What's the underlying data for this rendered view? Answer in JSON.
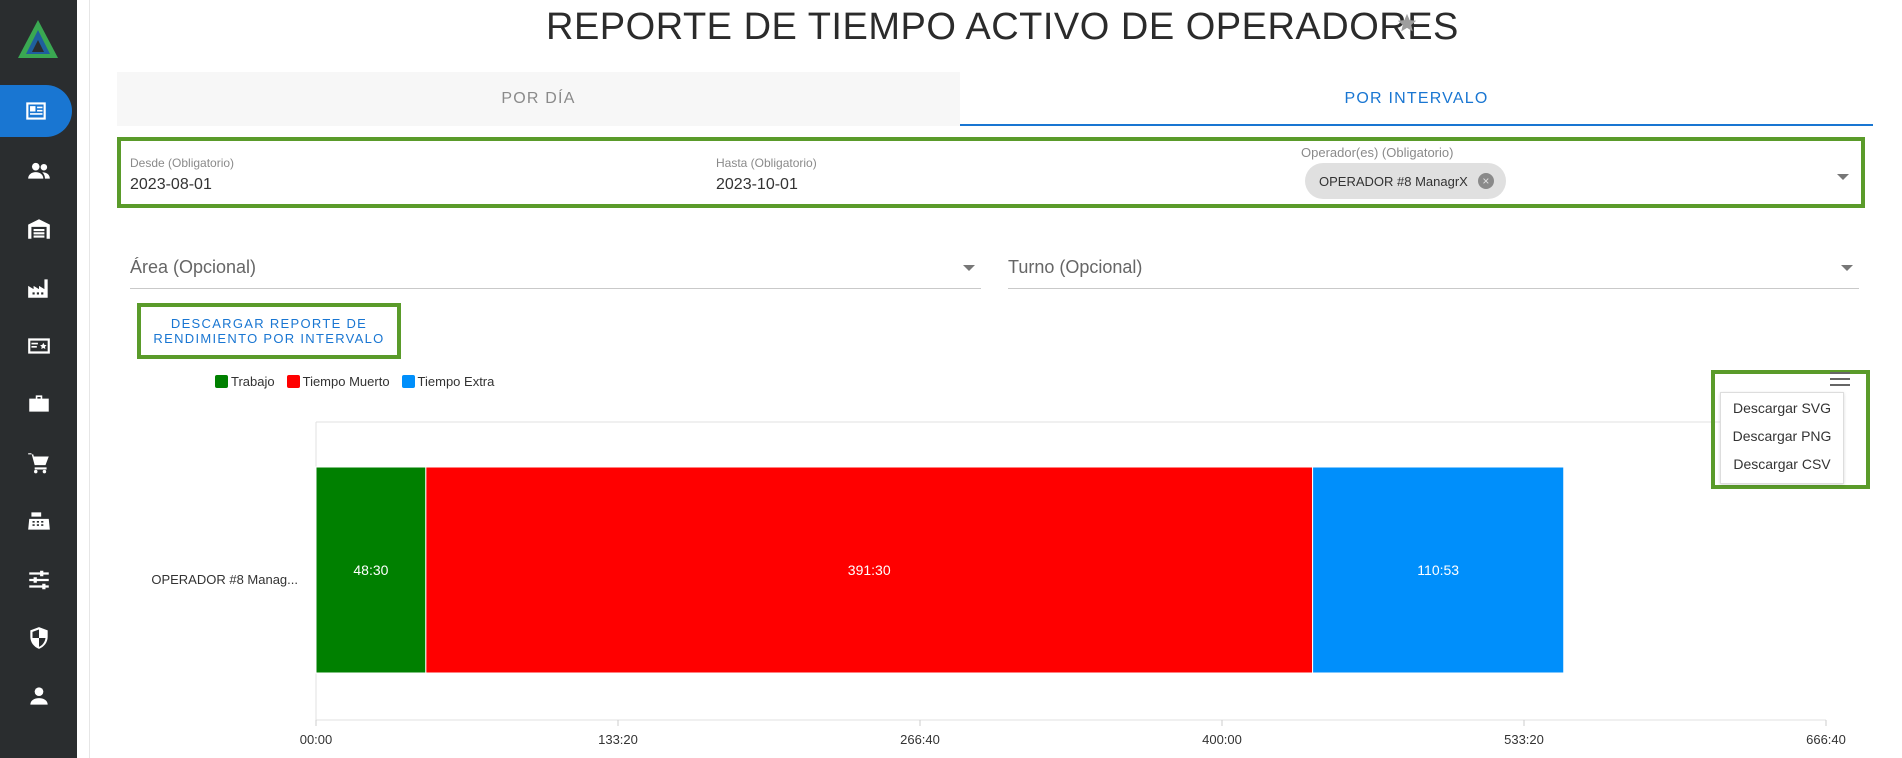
{
  "page": {
    "title": "REPORTE DE TIEMPO ACTIVO DE OPERADORES"
  },
  "sidebar": {
    "items": [
      {
        "icon": "newspaper-icon",
        "active": true
      },
      {
        "icon": "group-icon",
        "active": false
      },
      {
        "icon": "warehouse-icon",
        "active": false
      },
      {
        "icon": "factory-icon",
        "active": false
      },
      {
        "icon": "badge-card-icon",
        "active": false
      },
      {
        "icon": "toolbox-icon",
        "active": false
      },
      {
        "icon": "cart-icon",
        "active": false
      },
      {
        "icon": "cash-register-icon",
        "active": false
      },
      {
        "icon": "sliders-icon",
        "active": false
      },
      {
        "icon": "shield-icon",
        "active": false
      },
      {
        "icon": "person-icon",
        "active": false
      }
    ]
  },
  "tabs": [
    {
      "label": "POR DÍA",
      "active": false
    },
    {
      "label": "POR INTERVALO",
      "active": true
    }
  ],
  "filters": {
    "desde_label": "Desde (Obligatorio)",
    "desde_value": "2023-08-01",
    "hasta_label": "Hasta (Obligatorio)",
    "hasta_value": "2023-10-01",
    "operador_label": "Operador(es) (Obligatorio)",
    "operador_chip": "OPERADOR #8 ManagrX",
    "area_placeholder": "Área (Opcional)",
    "turno_placeholder": "Turno (Opcional)"
  },
  "download_button": {
    "line1": "DESCARGAR REPORTE DE",
    "line2": "RENDIMIENTO POR INTERVALO"
  },
  "export_menu": {
    "items": [
      "Descargar SVG",
      "Descargar PNG",
      "Descargar CSV"
    ]
  },
  "colors": {
    "accent": "#1976d2",
    "sidebar": "#2a2d2f",
    "highlight": "#5a9b2a"
  },
  "chart_data": {
    "type": "bar",
    "orientation": "horizontal",
    "stacked": true,
    "categories": [
      "OPERADOR #8 Manag..."
    ],
    "series": [
      {
        "name": "Trabajo",
        "color": "#008000",
        "values": [
          48.5
        ],
        "data_labels": [
          "48:30"
        ]
      },
      {
        "name": "Tiempo Muerto",
        "color": "#ff0000",
        "values": [
          391.5
        ],
        "data_labels": [
          "391:30"
        ]
      },
      {
        "name": "Tiempo Extra",
        "color": "#008ffb",
        "values": [
          110.883
        ],
        "data_labels": [
          "110:53"
        ]
      }
    ],
    "x_ticks": [
      "00:00",
      "133:20",
      "266:40",
      "400:00",
      "533:20",
      "666:40"
    ],
    "xlim": [
      0,
      666.667
    ],
    "legend_position": "top-left",
    "grid": false
  }
}
